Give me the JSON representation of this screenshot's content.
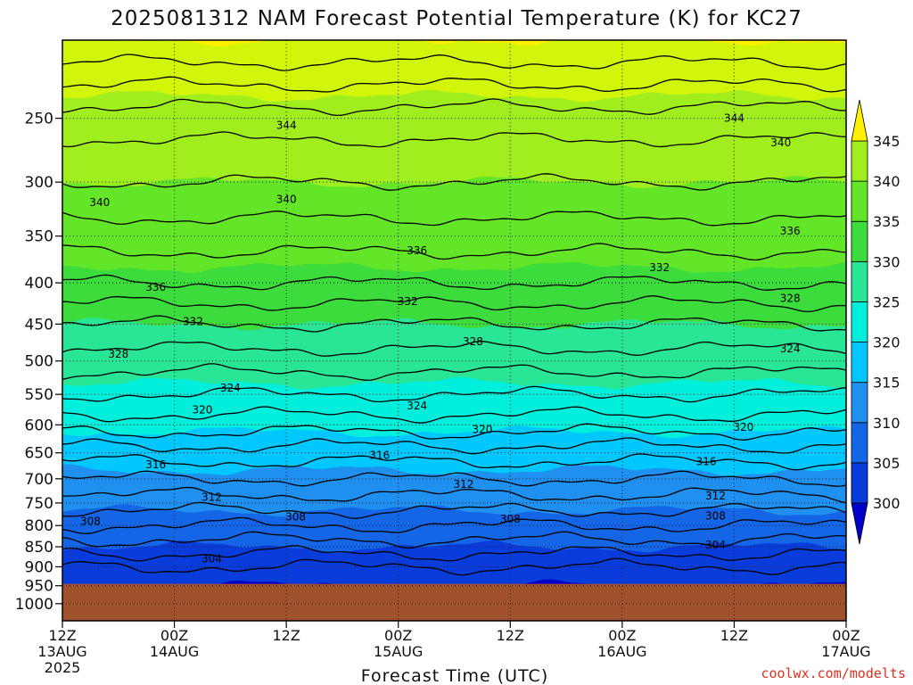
{
  "chart_data": {
    "type": "heatmap",
    "title": "2025081312 NAM Forecast Potential Temperature (K) for KC27",
    "xlabel": "Forecast Time (UTC)",
    "ylabel": "",
    "y_axis": {
      "label": "",
      "scale": "log",
      "reversed": true,
      "range": [
        200,
        1050
      ],
      "ticks": [
        250,
        300,
        350,
        400,
        450,
        500,
        550,
        600,
        650,
        700,
        750,
        800,
        850,
        900,
        950,
        1000
      ]
    },
    "x_axis": {
      "range_hours": [
        0,
        84
      ],
      "ticks": [
        {
          "hour": 0,
          "label": "12Z",
          "sub": "13AUG",
          "sub2": "2025"
        },
        {
          "hour": 12,
          "label": "00Z",
          "sub": "14AUG",
          "sub2": ""
        },
        {
          "hour": 24,
          "label": "12Z",
          "sub": "",
          "sub2": ""
        },
        {
          "hour": 36,
          "label": "00Z",
          "sub": "15AUG",
          "sub2": ""
        },
        {
          "hour": 48,
          "label": "12Z",
          "sub": "",
          "sub2": ""
        },
        {
          "hour": 60,
          "label": "00Z",
          "sub": "16AUG",
          "sub2": ""
        },
        {
          "hour": 72,
          "label": "12Z",
          "sub": "",
          "sub2": ""
        },
        {
          "hour": 84,
          "label": "00Z",
          "sub": "17AUG",
          "sub2": ""
        }
      ]
    },
    "grid": true,
    "surface_pressure": 945,
    "ground_color": "#a0522d",
    "colorbar": {
      "ticks": [
        300,
        305,
        310,
        315,
        320,
        325,
        330,
        335,
        340,
        345
      ],
      "levels": [
        295,
        300,
        305,
        310,
        315,
        320,
        325,
        330,
        335,
        340,
        345,
        350
      ],
      "colors": [
        "#0000c8",
        "#0a3cdc",
        "#1466e6",
        "#1f8ff0",
        "#00c8ff",
        "#00eedc",
        "#28e696",
        "#3cdc3c",
        "#64e628",
        "#a0ee1e",
        "#d2f50a",
        "#fff000"
      ]
    },
    "profiles": [
      {
        "p": 200,
        "t": 350
      },
      {
        "p": 250,
        "t": 343
      },
      {
        "p": 300,
        "t": 340
      },
      {
        "p": 350,
        "t": 337
      },
      {
        "p": 400,
        "t": 334
      },
      {
        "p": 450,
        "t": 330
      },
      {
        "p": 500,
        "t": 327
      },
      {
        "p": 550,
        "t": 324
      },
      {
        "p": 600,
        "t": 321
      },
      {
        "p": 650,
        "t": 317
      },
      {
        "p": 700,
        "t": 314
      },
      {
        "p": 750,
        "t": 311
      },
      {
        "p": 800,
        "t": 308
      },
      {
        "p": 850,
        "t": 305
      },
      {
        "p": 900,
        "t": 302
      },
      {
        "p": 950,
        "t": 301
      }
    ],
    "contour_labels": [
      {
        "hour": 24,
        "p": 255,
        "text": "344"
      },
      {
        "hour": 72,
        "p": 250,
        "text": "344"
      },
      {
        "hour": 77,
        "p": 268,
        "text": "340"
      },
      {
        "hour": 4,
        "p": 318,
        "text": "340"
      },
      {
        "hour": 24,
        "p": 315,
        "text": "340"
      },
      {
        "hour": 78,
        "p": 345,
        "text": "336"
      },
      {
        "hour": 38,
        "p": 365,
        "text": "336"
      },
      {
        "hour": 10,
        "p": 405,
        "text": "336"
      },
      {
        "hour": 64,
        "p": 383,
        "text": "332"
      },
      {
        "hour": 37,
        "p": 422,
        "text": "332"
      },
      {
        "hour": 14,
        "p": 447,
        "text": "332"
      },
      {
        "hour": 78,
        "p": 418,
        "text": "328"
      },
      {
        "hour": 44,
        "p": 473,
        "text": "328"
      },
      {
        "hour": 6,
        "p": 490,
        "text": "328"
      },
      {
        "hour": 78,
        "p": 483,
        "text": "324"
      },
      {
        "hour": 18,
        "p": 540,
        "text": "324"
      },
      {
        "hour": 38,
        "p": 568,
        "text": "324"
      },
      {
        "hour": 15,
        "p": 575,
        "text": "320"
      },
      {
        "hour": 45,
        "p": 608,
        "text": "320"
      },
      {
        "hour": 73,
        "p": 604,
        "text": "320"
      },
      {
        "hour": 10,
        "p": 672,
        "text": "316"
      },
      {
        "hour": 34,
        "p": 655,
        "text": "316"
      },
      {
        "hour": 69,
        "p": 666,
        "text": "316"
      },
      {
        "hour": 16,
        "p": 738,
        "text": "312"
      },
      {
        "hour": 43,
        "p": 711,
        "text": "312"
      },
      {
        "hour": 70,
        "p": 735,
        "text": "312"
      },
      {
        "hour": 3,
        "p": 790,
        "text": "308"
      },
      {
        "hour": 25,
        "p": 780,
        "text": "308"
      },
      {
        "hour": 48,
        "p": 785,
        "text": "308"
      },
      {
        "hour": 70,
        "p": 778,
        "text": "308"
      },
      {
        "hour": 16,
        "p": 880,
        "text": "304"
      },
      {
        "hour": 70,
        "p": 846,
        "text": "304"
      }
    ]
  },
  "credit": "coolwx.com/modelts"
}
